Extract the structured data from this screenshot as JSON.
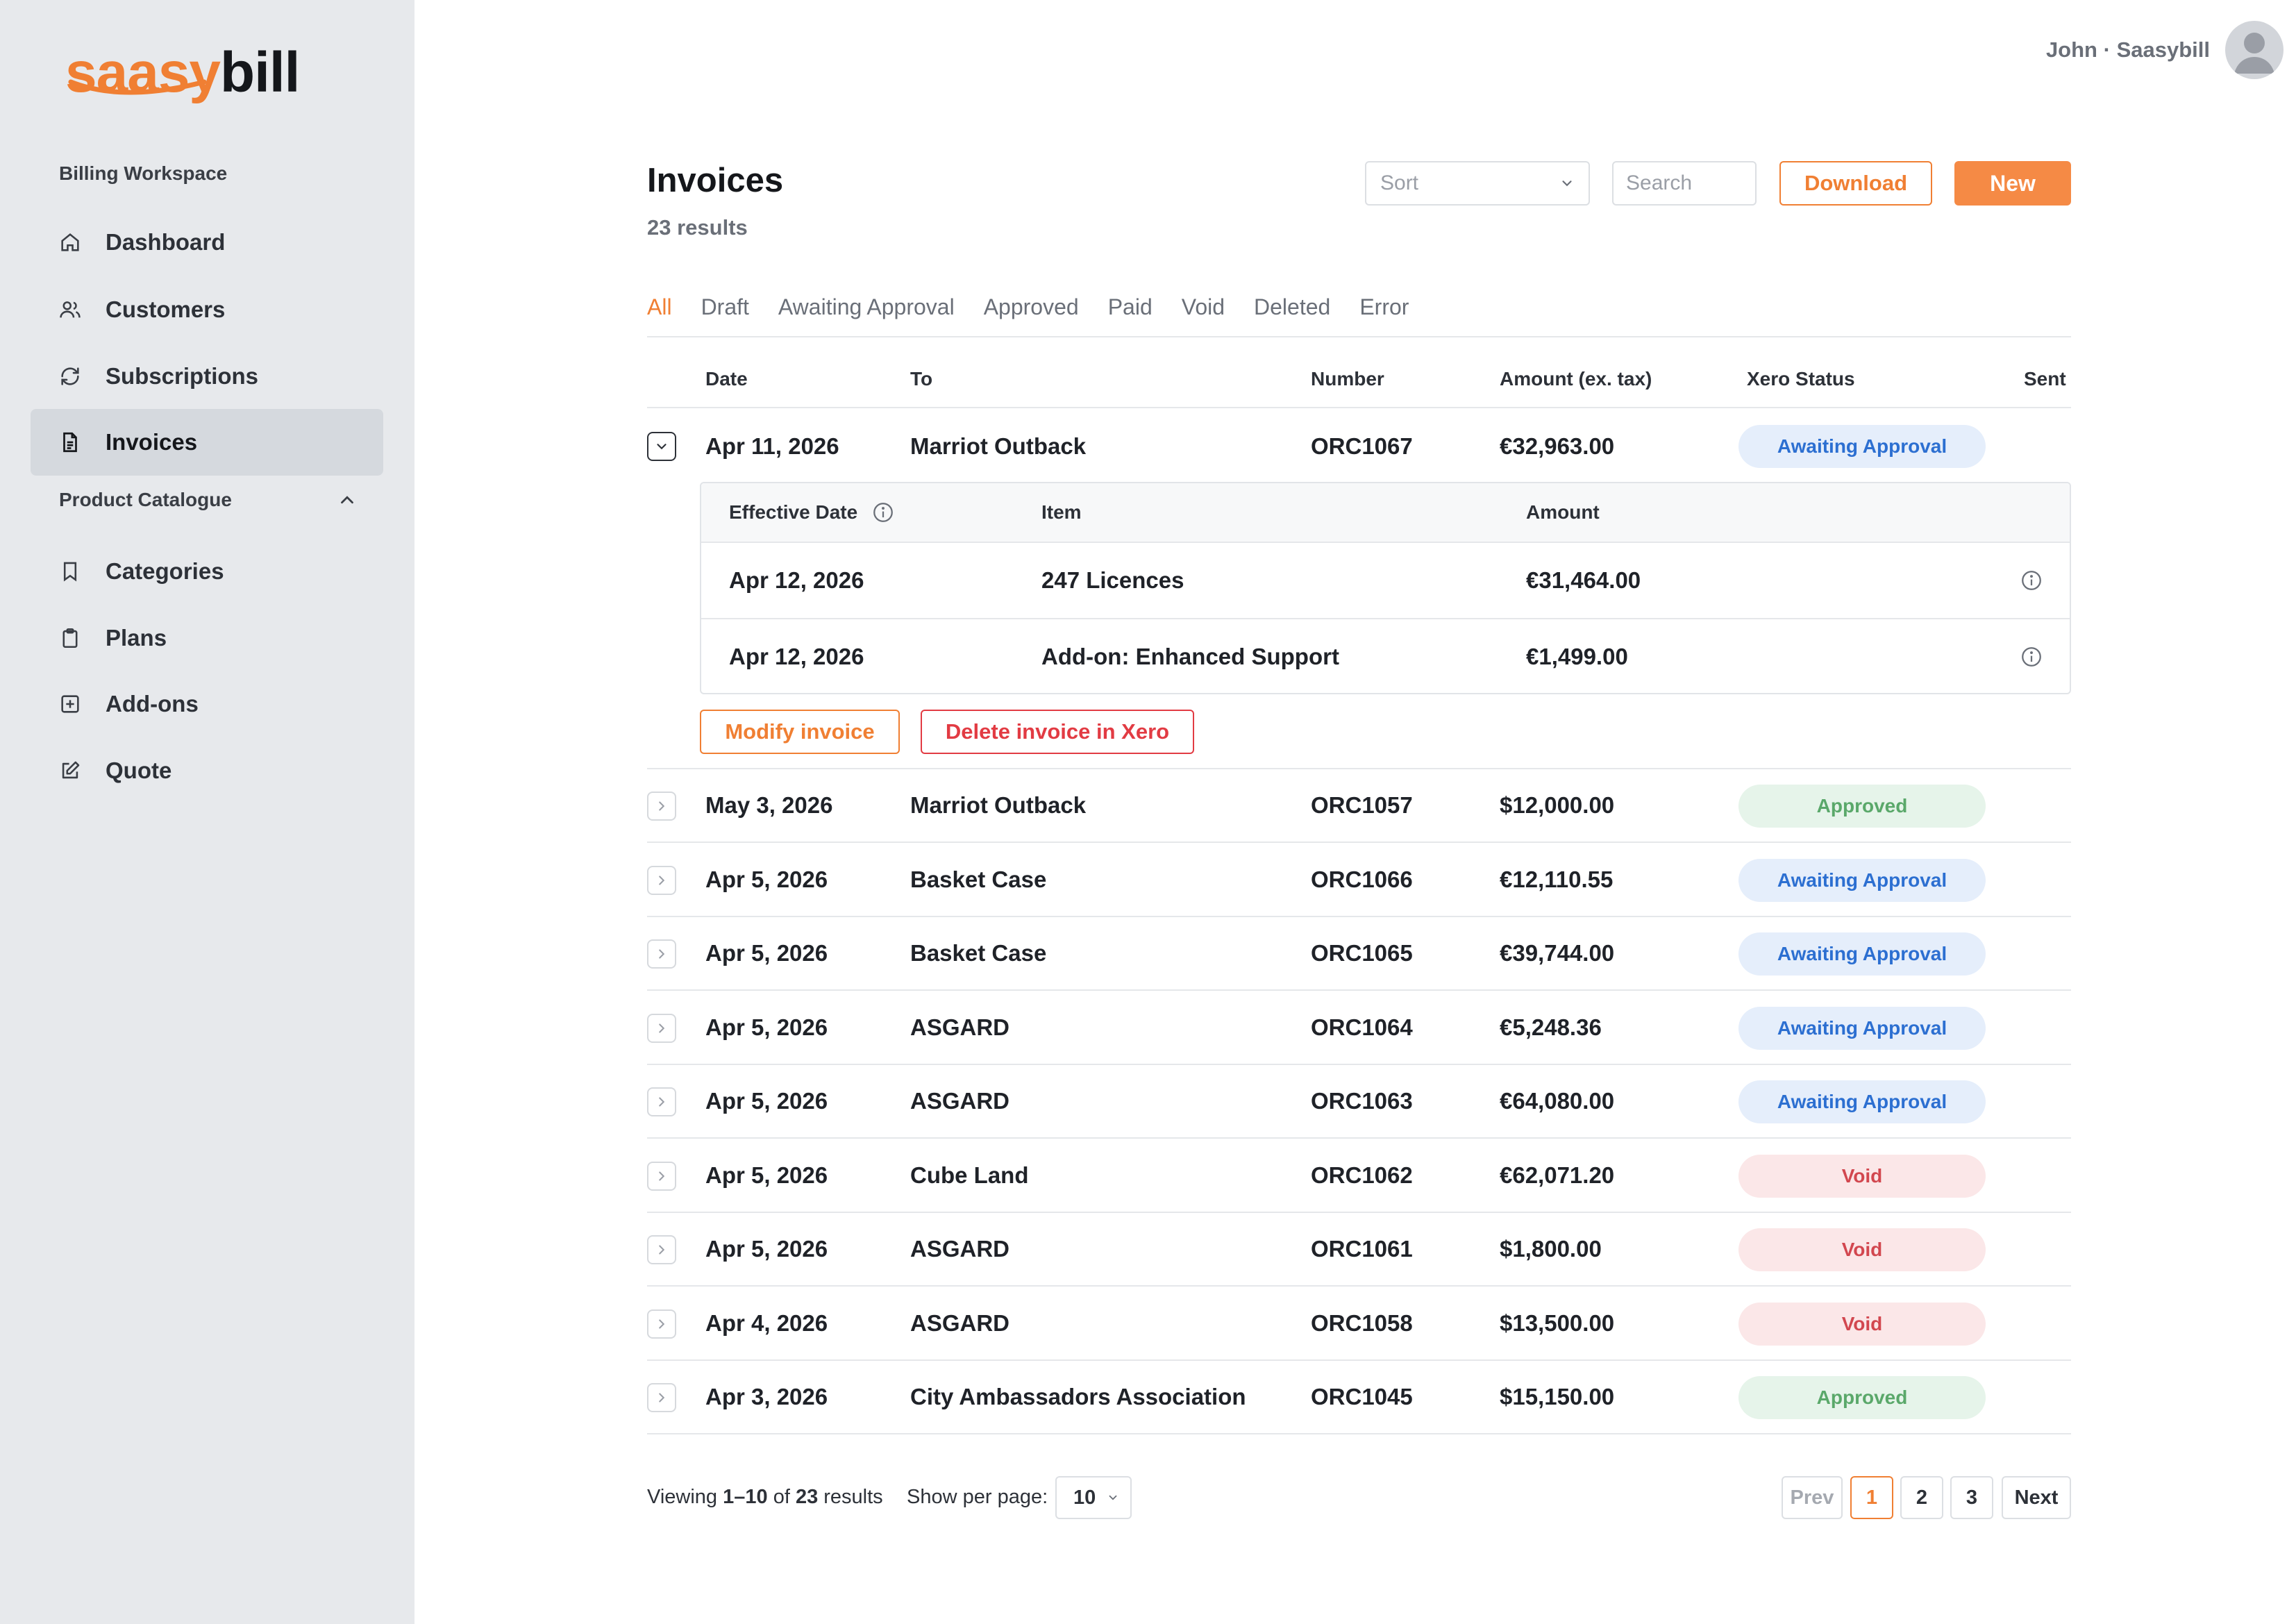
{
  "brand": {
    "logo_part1": "saasy",
    "logo_part2": "bill",
    "accent_color": "#f07f33"
  },
  "sidebar": {
    "workspace_label": "Billing Workspace",
    "items": [
      {
        "label": "Dashboard",
        "icon": "home-icon"
      },
      {
        "label": "Customers",
        "icon": "users-icon"
      },
      {
        "label": "Subscriptions",
        "icon": "refresh-icon"
      },
      {
        "label": "Invoices",
        "icon": "document-icon",
        "active": true
      }
    ],
    "catalogue_label": "Product Catalogue",
    "catalogue_items": [
      {
        "label": "Categories",
        "icon": "bookmark-icon"
      },
      {
        "label": "Plans",
        "icon": "clipboard-icon"
      },
      {
        "label": "Add-ons",
        "icon": "plus-square-icon"
      },
      {
        "label": "Quote",
        "icon": "edit-icon"
      }
    ]
  },
  "user": {
    "name": "John",
    "separator": "·",
    "org": "Saasybill"
  },
  "header": {
    "title": "Invoices",
    "results": "23 results",
    "sort_placeholder": "Sort",
    "search_placeholder": "Search",
    "download_label": "Download",
    "new_label": "New"
  },
  "tabs": [
    "All",
    "Draft",
    "Awaiting Approval",
    "Approved",
    "Paid",
    "Void",
    "Deleted",
    "Error"
  ],
  "active_tab": "All",
  "table": {
    "columns": [
      "Date",
      "To",
      "Number",
      "Amount (ex. tax)",
      "Xero Status",
      "Sent"
    ],
    "expanded_row": {
      "date": "Apr 11, 2026",
      "to": "Marriot Outback",
      "number": "ORC1067",
      "amount": "€32,963.00",
      "status": "Awaiting Approval",
      "detail_columns": [
        "Effective Date",
        "Item",
        "Amount"
      ],
      "lines": [
        {
          "date": "Apr 12, 2026",
          "item": "247 Licences",
          "amount": "€31,464.00"
        },
        {
          "date": "Apr 12, 2026",
          "item": "Add-on: Enhanced Support",
          "amount": "€1,499.00"
        }
      ],
      "modify_label": "Modify invoice",
      "delete_label": "Delete invoice in Xero"
    },
    "rows": [
      {
        "date": "May 3, 2026",
        "to": "Marriot Outback",
        "number": "ORC1057",
        "amount": "$12,000.00",
        "status": "Approved"
      },
      {
        "date": "Apr 5, 2026",
        "to": "Basket Case",
        "number": "ORC1066",
        "amount": "€12,110.55",
        "status": "Awaiting Approval"
      },
      {
        "date": "Apr 5, 2026",
        "to": "Basket Case",
        "number": "ORC1065",
        "amount": "€39,744.00",
        "status": "Awaiting Approval"
      },
      {
        "date": "Apr 5, 2026",
        "to": "ASGARD",
        "number": "ORC1064",
        "amount": "€5,248.36",
        "status": "Awaiting Approval"
      },
      {
        "date": "Apr 5, 2026",
        "to": "ASGARD",
        "number": "ORC1063",
        "amount": "€64,080.00",
        "status": "Awaiting Approval"
      },
      {
        "date": "Apr 5, 2026",
        "to": "Cube Land",
        "number": "ORC1062",
        "amount": "€62,071.20",
        "status": "Void"
      },
      {
        "date": "Apr 5, 2026",
        "to": "ASGARD",
        "number": "ORC1061",
        "amount": "$1,800.00",
        "status": "Void"
      },
      {
        "date": "Apr 4, 2026",
        "to": "ASGARD",
        "number": "ORC1058",
        "amount": "$13,500.00",
        "status": "Void"
      },
      {
        "date": "Apr 3, 2026",
        "to": "City Ambassadors Association",
        "number": "ORC1045",
        "amount": "$15,150.00",
        "status": "Approved"
      }
    ]
  },
  "footer": {
    "viewing_prefix": "Viewing",
    "viewing_range": "1–10",
    "viewing_of": "of",
    "viewing_total": "23",
    "viewing_suffix": "results",
    "per_page_label": "Show per page:",
    "per_page_value": "10",
    "pager": {
      "prev": "Prev",
      "pages": [
        "1",
        "2",
        "3"
      ],
      "current": "1",
      "next": "Next"
    }
  },
  "status_colors": {
    "awaiting": "#2c6fd1",
    "approved": "#5aa86a",
    "void": "#d2474f"
  }
}
